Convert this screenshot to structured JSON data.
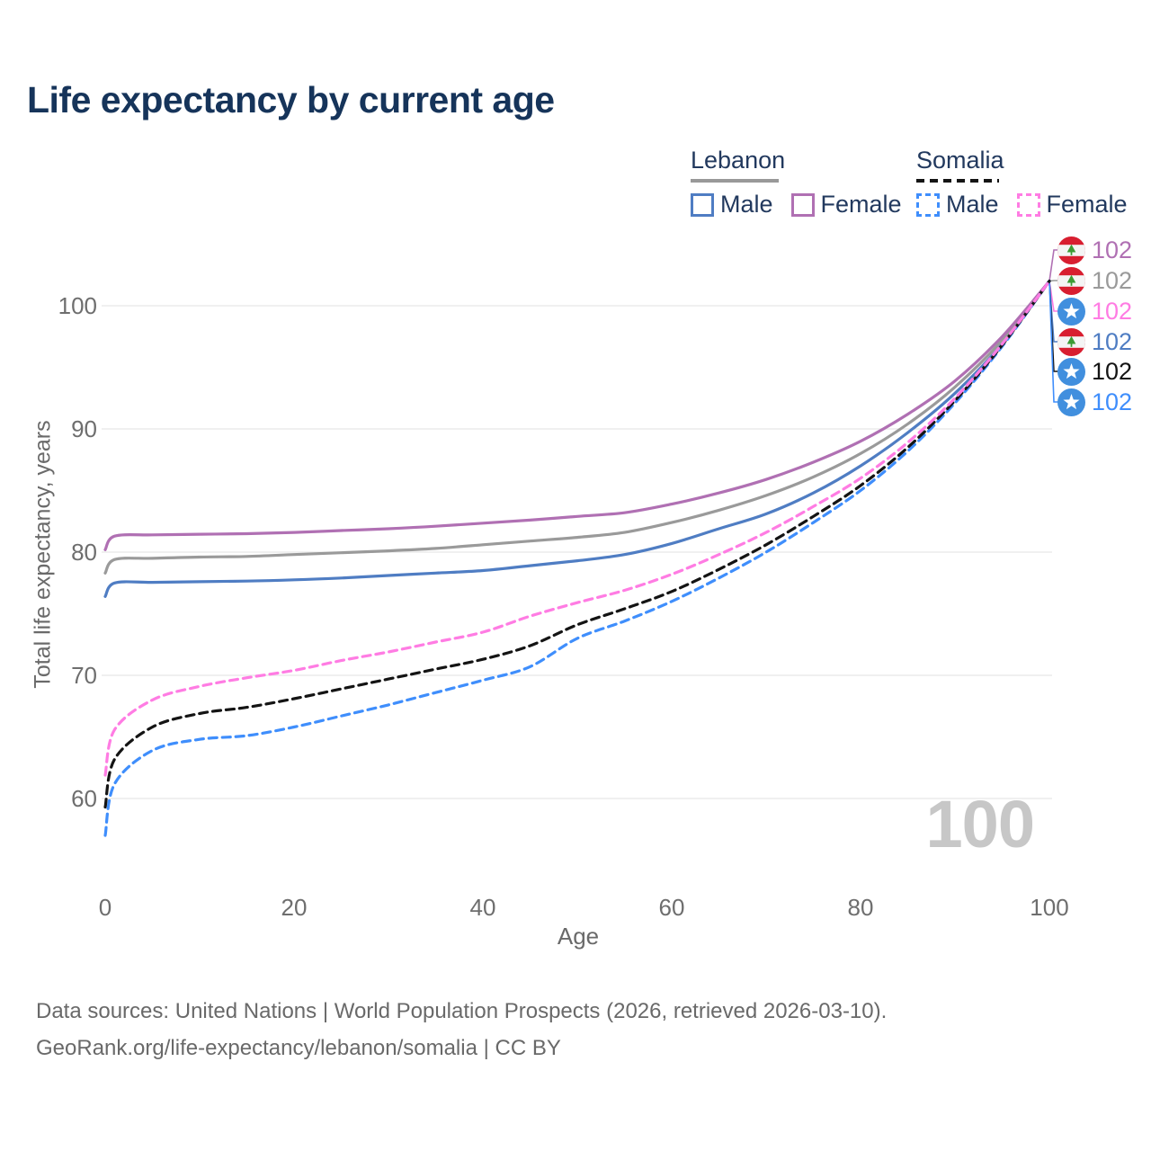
{
  "title": "Life expectancy by current age",
  "legend": {
    "groups": [
      {
        "name": "Lebanon",
        "dashed": false,
        "underline_color": "#999999",
        "items": [
          {
            "label": "Male",
            "color": "#4f7dc3"
          },
          {
            "label": "Female",
            "color": "#b070b3"
          }
        ]
      },
      {
        "name": "Somalia",
        "dashed": true,
        "underline_color": "#141414",
        "items": [
          {
            "label": "Male",
            "color": "#3f8efc"
          },
          {
            "label": "Female",
            "color": "#ff7ce3"
          }
        ]
      }
    ]
  },
  "chart_data": {
    "type": "line",
    "title": "Life expectancy by current age",
    "xlabel": "Age",
    "ylabel": "Total life expectancy, years",
    "xlim": [
      0,
      100
    ],
    "ylim": [
      56,
      103
    ],
    "xticks": [
      0,
      20,
      40,
      60,
      80,
      100
    ],
    "yticks": [
      60,
      70,
      80,
      90,
      100
    ],
    "grid": "horizontal",
    "legend_position": "top-right",
    "age_counter": "100",
    "x": [
      0,
      1,
      5,
      10,
      15,
      20,
      25,
      30,
      35,
      40,
      45,
      50,
      55,
      60,
      65,
      70,
      75,
      80,
      85,
      90,
      95,
      100
    ],
    "series": [
      {
        "name": "Lebanon Male",
        "country": "lebanon",
        "color": "#4f7dc3",
        "dash": false,
        "values": [
          76.4,
          77.5,
          77.55,
          77.6,
          77.65,
          77.75,
          77.9,
          78.1,
          78.3,
          78.5,
          78.9,
          79.3,
          79.8,
          80.7,
          81.9,
          83.1,
          84.8,
          87.0,
          89.7,
          92.9,
          96.9,
          102
        ]
      },
      {
        "name": "Lebanon",
        "country": "lebanon",
        "color": "#9a9a9a",
        "dash": false,
        "values": [
          78.3,
          79.4,
          79.5,
          79.6,
          79.65,
          79.8,
          79.95,
          80.1,
          80.3,
          80.6,
          80.9,
          81.2,
          81.6,
          82.4,
          83.4,
          84.6,
          86.1,
          88.0,
          90.4,
          93.4,
          97.2,
          102
        ]
      },
      {
        "name": "Lebanon Female",
        "country": "lebanon",
        "color": "#b070b3",
        "dash": false,
        "values": [
          80.2,
          81.3,
          81.4,
          81.45,
          81.5,
          81.6,
          81.75,
          81.9,
          82.1,
          82.35,
          82.6,
          82.9,
          83.2,
          83.9,
          84.8,
          85.9,
          87.3,
          89.0,
          91.2,
          93.9,
          97.5,
          102
        ]
      },
      {
        "name": "Somalia Male",
        "country": "somalia",
        "color": "#3f8efc",
        "dash": true,
        "values": [
          57.0,
          61.2,
          63.9,
          64.8,
          65.1,
          65.8,
          66.7,
          67.6,
          68.6,
          69.6,
          70.7,
          73.0,
          74.4,
          76.0,
          77.9,
          80.0,
          82.4,
          85.0,
          88.2,
          92.1,
          96.7,
          102
        ]
      },
      {
        "name": "Somalia",
        "country": "somalia",
        "color": "#141414",
        "dash": true,
        "values": [
          59.3,
          63.2,
          65.8,
          66.9,
          67.4,
          68.1,
          68.9,
          69.7,
          70.5,
          71.3,
          72.4,
          74.1,
          75.4,
          76.8,
          78.6,
          80.6,
          82.9,
          85.4,
          88.5,
          92.3,
          96.8,
          102
        ]
      },
      {
        "name": "Somalia Female",
        "country": "somalia",
        "color": "#ff7ce3",
        "dash": true,
        "values": [
          61.9,
          65.6,
          68.0,
          69.1,
          69.8,
          70.4,
          71.2,
          71.9,
          72.7,
          73.5,
          74.8,
          75.9,
          76.9,
          78.2,
          79.8,
          81.6,
          83.7,
          86.0,
          88.9,
          92.5,
          96.9,
          102
        ]
      }
    ]
  },
  "end_labels": [
    {
      "flag": "lebanon",
      "value": "102",
      "color": "#b070b3"
    },
    {
      "flag": "lebanon",
      "value": "102",
      "color": "#9a9a9a"
    },
    {
      "flag": "somalia",
      "value": "102",
      "color": "#ff7ce3"
    },
    {
      "flag": "lebanon",
      "value": "102",
      "color": "#4f7dc3"
    },
    {
      "flag": "somalia",
      "value": "102",
      "color": "#141414"
    },
    {
      "flag": "somalia",
      "value": "102",
      "color": "#3f8efc"
    }
  ],
  "footer": {
    "line1": "Data sources: United Nations | World Population Prospects (2026, retrieved 2026-03-10).",
    "line2": "GeoRank.org/life-expectancy/lebanon/somalia | CC BY"
  }
}
